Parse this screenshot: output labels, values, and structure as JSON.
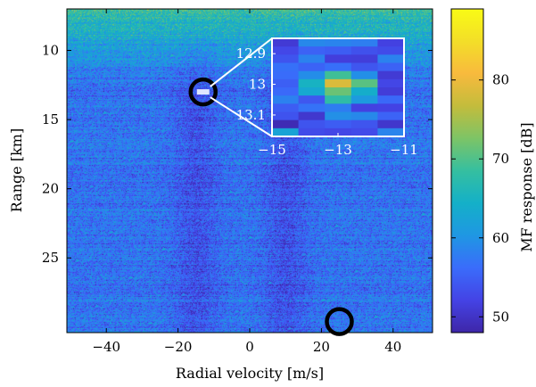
{
  "chart_data": {
    "type": "heatmap",
    "title": "",
    "xlabel": "Radial velocity [m/s]",
    "ylabel": "Range [km]",
    "colorbar_label": "MF response [dB]",
    "xlim": [
      -51,
      51
    ],
    "ylim": [
      7,
      30.4
    ],
    "y_inverted": true,
    "colorbar_range": [
      48,
      89
    ],
    "x_ticks": [
      -40,
      -20,
      0,
      20,
      40
    ],
    "x_tick_labels": [
      "−40",
      "−20",
      "0",
      "20",
      "40"
    ],
    "y_ticks": [
      10,
      15,
      20,
      25
    ],
    "y_tick_labels": [
      "10",
      "15",
      "20",
      "25"
    ],
    "colorbar_ticks": [
      50,
      60,
      70,
      80
    ],
    "colorbar_tick_labels": [
      "50",
      "60",
      "70",
      "80"
    ],
    "colormap": [
      "#3e26a8",
      "#4443e5",
      "#3a6cfb",
      "#1f97e3",
      "#14b0c8",
      "#35bfa0",
      "#7dc466",
      "#c3bc3c",
      "#f8ba3d",
      "#f3de28",
      "#f9fb15"
    ],
    "texture": {
      "background_level_db": 57,
      "near_range_level_db": 68,
      "clutter_bands_velocity": [
        -15,
        10
      ]
    },
    "markers": [
      {
        "shape": "circle",
        "velocity": -13,
        "range": 13
      },
      {
        "shape": "circle",
        "velocity": 25,
        "range": 29.6
      }
    ],
    "inset": {
      "xlim": [
        -15,
        -11
      ],
      "ylim": [
        12.85,
        13.17
      ],
      "x_ticks": [
        -15,
        -13,
        -11
      ],
      "x_tick_labels": [
        "−15",
        "−13",
        "−11"
      ],
      "y_ticks": [
        12.9,
        13,
        13.1
      ],
      "y_tick_labels": [
        "12.9",
        "13",
        "13.1"
      ],
      "peak": {
        "velocity": -13,
        "range": 13.0,
        "level_db": 78
      }
    }
  }
}
